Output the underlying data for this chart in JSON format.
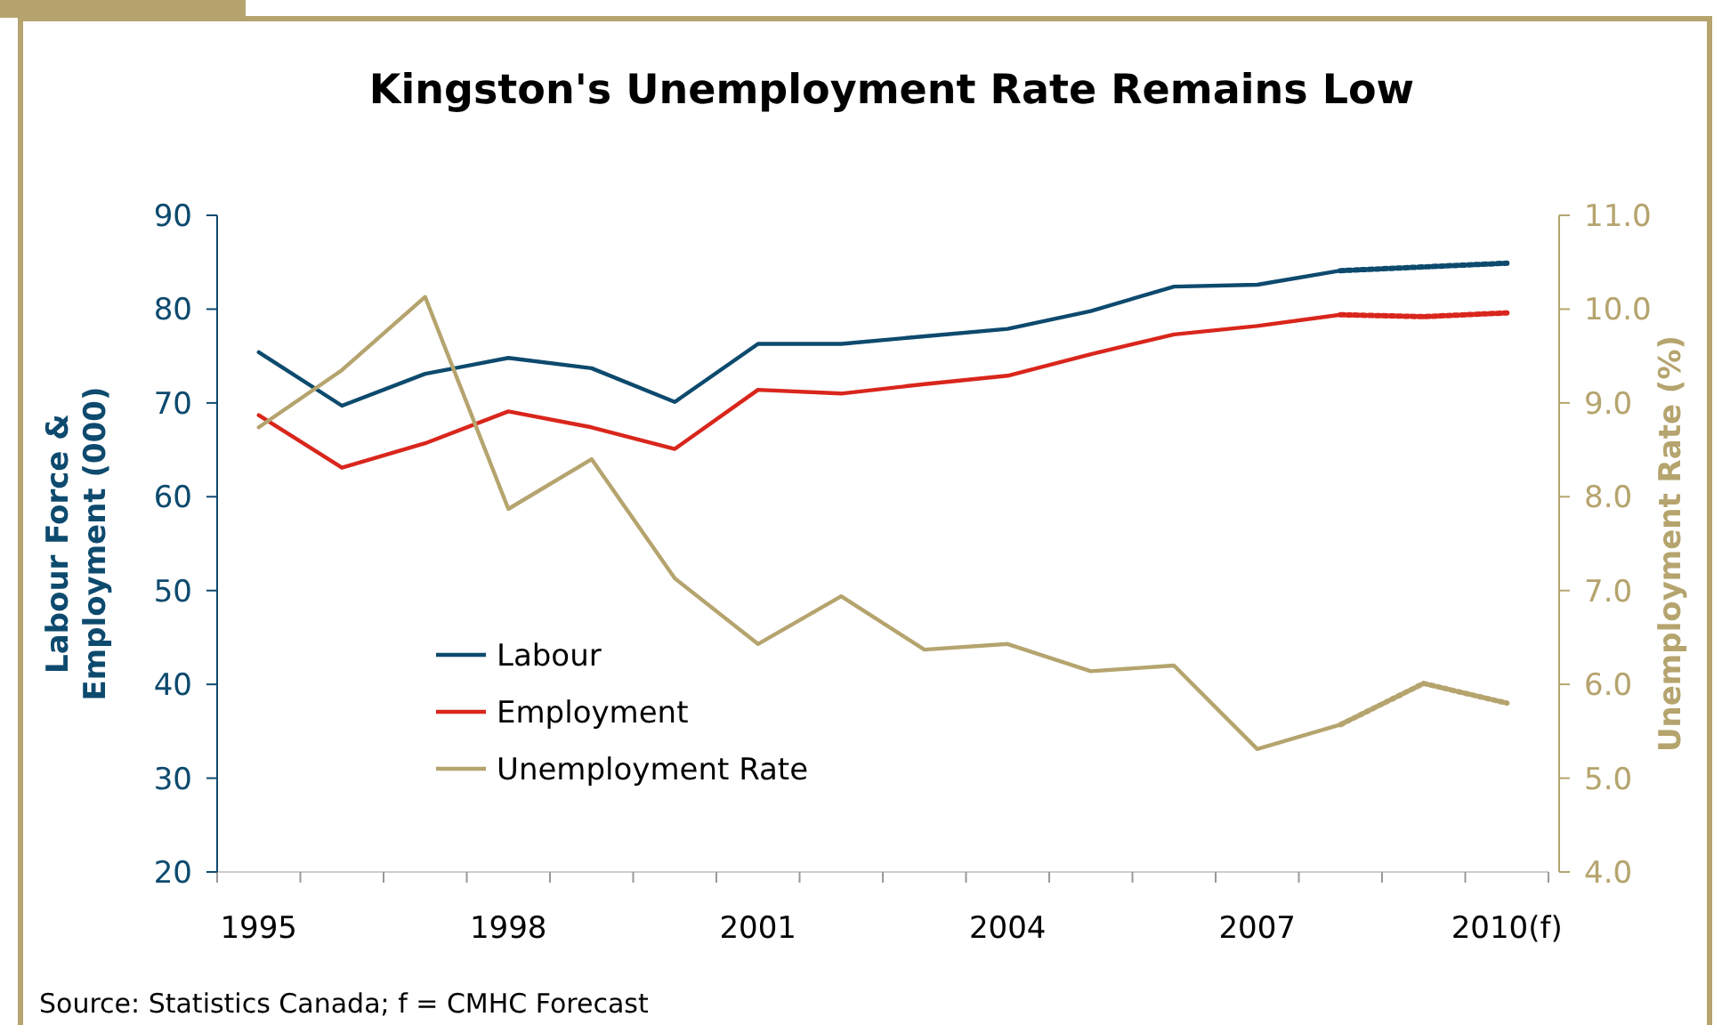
{
  "chart_data": {
    "type": "line",
    "title": "Kingston's Unemployment Rate Remains Low",
    "ylabel": "Labour Force & Employment (000)",
    "y2label": "Unemployment Rate (%)",
    "categories": [
      "1995",
      null,
      null,
      "1998",
      null,
      null,
      "2001",
      null,
      null,
      "2004",
      null,
      null,
      "2007",
      null,
      null,
      "2010(f)"
    ],
    "series": [
      {
        "name": "Labour",
        "color": "#0d4a6e",
        "values": [
          75.4,
          69.7,
          73.1,
          74.8,
          73.7,
          70.1,
          76.3,
          76.3,
          77.1,
          77.9,
          79.8,
          82.4,
          82.6,
          84.1,
          null,
          null
        ]
      },
      {
        "name": "Employment",
        "color": "#d9261c",
        "values": [
          68.7,
          63.1,
          65.7,
          69.1,
          67.4,
          65.1,
          71.4,
          71.0,
          72.0,
          72.9,
          75.2,
          77.3,
          78.2,
          79.4,
          null,
          null
        ]
      },
      {
        "name": "Unemployment Rate",
        "color": "#b5a46e",
        "axis": "y2",
        "values": [
          8.74,
          9.35,
          10.13,
          7.87,
          8.4,
          7.13,
          6.43,
          6.94,
          6.37,
          6.43,
          6.14,
          6.2,
          5.31,
          5.57,
          null,
          null
        ]
      },
      {
        "color": "#0d4a6e",
        "line_style": "dotted",
        "values": [
          null,
          null,
          null,
          null,
          null,
          null,
          null,
          null,
          null,
          null,
          null,
          null,
          null,
          84.1,
          84.5,
          84.9
        ]
      },
      {
        "color": "#d9261c",
        "line_style": "dotted",
        "values": [
          null,
          null,
          null,
          null,
          null,
          null,
          null,
          null,
          null,
          null,
          null,
          null,
          null,
          79.4,
          79.2,
          79.6
        ]
      },
      {
        "color": "#b5a46e",
        "line_style": "dotted",
        "axis": "y2",
        "values": [
          null,
          null,
          null,
          null,
          null,
          null,
          null,
          null,
          null,
          null,
          null,
          null,
          null,
          5.57,
          6.01,
          5.8
        ]
      }
    ],
    "ylim": [
      20,
      90
    ],
    "yticks": [
      20,
      30,
      40,
      50,
      60,
      70,
      80,
      90
    ],
    "y2lim": [
      4,
      11
    ],
    "y2ticks": [
      {
        "value": 4,
        "label": "4.0"
      },
      {
        "value": 5,
        "label": "5.0"
      },
      {
        "value": 6,
        "label": "6.0"
      },
      {
        "value": 7,
        "label": "7.0"
      },
      {
        "value": 8,
        "label": "8.0"
      },
      {
        "value": 9,
        "label": "9.0"
      },
      {
        "value": 10,
        "label": "10.0"
      },
      {
        "value": 11,
        "label": "11.0"
      }
    ],
    "grid": false,
    "legend": "bottom left",
    "line_style": "solid",
    "annotations": [
      "Source: Statistics Canada; f = CMHC Forecast"
    ]
  }
}
